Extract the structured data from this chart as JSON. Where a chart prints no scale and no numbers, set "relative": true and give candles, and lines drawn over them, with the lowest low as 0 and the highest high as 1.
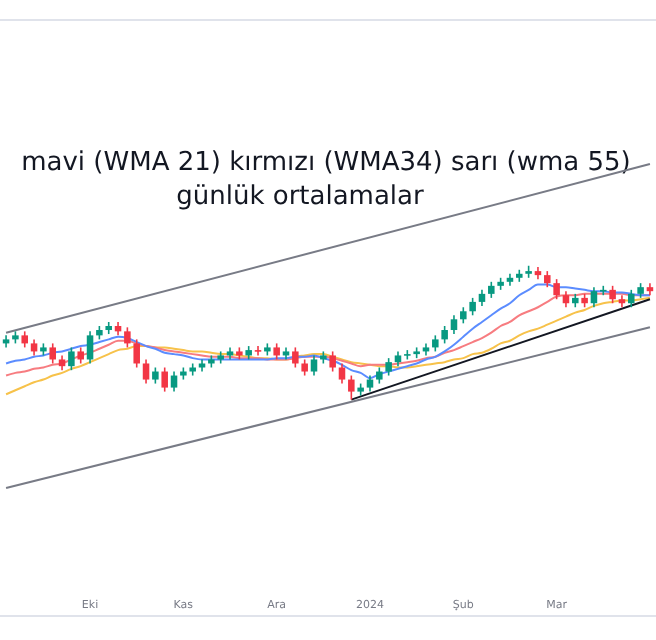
{
  "chart_data": {
    "type": "candlestick",
    "title": "mavi (WMA 21) kırmızı (WMA34) sarı (wma 55)",
    "subtitle": "günlük ortalamalar",
    "relative": true,
    "categories": [
      null,
      null,
      null,
      null,
      null,
      null,
      null,
      null,
      null,
      "Eki",
      null,
      null,
      null,
      null,
      null,
      null,
      null,
      null,
      null,
      "Kas",
      null,
      null,
      null,
      null,
      null,
      null,
      null,
      null,
      null,
      "Ara",
      null,
      null,
      null,
      null,
      null,
      null,
      null,
      null,
      null,
      "2024",
      null,
      null,
      null,
      null,
      null,
      null,
      null,
      null,
      null,
      "Şub",
      null,
      null,
      null,
      null,
      null,
      null,
      null,
      null,
      null,
      "Mar",
      null,
      null,
      null,
      null,
      null,
      null,
      null,
      null,
      null,
      null
    ],
    "ohlc": [
      [
        0.42,
        0.48,
        0.39,
        0.45
      ],
      [
        0.45,
        0.51,
        0.42,
        0.48
      ],
      [
        0.48,
        0.51,
        0.39,
        0.42
      ],
      [
        0.42,
        0.45,
        0.33,
        0.36
      ],
      [
        0.36,
        0.42,
        0.33,
        0.39
      ],
      [
        0.39,
        0.42,
        0.27,
        0.3
      ],
      [
        0.3,
        0.33,
        0.22,
        0.25
      ],
      [
        0.25,
        0.39,
        0.22,
        0.36
      ],
      [
        0.36,
        0.39,
        0.27,
        0.3
      ],
      [
        0.3,
        0.51,
        0.27,
        0.48
      ],
      [
        0.48,
        0.55,
        0.45,
        0.52
      ],
      [
        0.52,
        0.58,
        0.49,
        0.55
      ],
      [
        0.55,
        0.58,
        0.48,
        0.51
      ],
      [
        0.51,
        0.54,
        0.39,
        0.42
      ],
      [
        0.42,
        0.45,
        0.24,
        0.27
      ],
      [
        0.27,
        0.3,
        0.12,
        0.15
      ],
      [
        0.15,
        0.24,
        0.12,
        0.21
      ],
      [
        0.21,
        0.24,
        0.06,
        0.09
      ],
      [
        0.09,
        0.21,
        0.06,
        0.18
      ],
      [
        0.18,
        0.24,
        0.15,
        0.21
      ],
      [
        0.21,
        0.27,
        0.18,
        0.24
      ],
      [
        0.24,
        0.3,
        0.21,
        0.27
      ],
      [
        0.27,
        0.33,
        0.24,
        0.3
      ],
      [
        0.3,
        0.36,
        0.27,
        0.33
      ],
      [
        0.33,
        0.39,
        0.3,
        0.36
      ],
      [
        0.36,
        0.39,
        0.3,
        0.33
      ],
      [
        0.33,
        0.4,
        0.3,
        0.37
      ],
      [
        0.37,
        0.4,
        0.33,
        0.36
      ],
      [
        0.36,
        0.42,
        0.33,
        0.39
      ],
      [
        0.39,
        0.42,
        0.3,
        0.33
      ],
      [
        0.33,
        0.39,
        0.3,
        0.36
      ],
      [
        0.36,
        0.39,
        0.24,
        0.27
      ],
      [
        0.27,
        0.3,
        0.18,
        0.21
      ],
      [
        0.21,
        0.33,
        0.18,
        0.3
      ],
      [
        0.3,
        0.36,
        0.27,
        0.33
      ],
      [
        0.33,
        0.36,
        0.21,
        0.24
      ],
      [
        0.24,
        0.27,
        0.12,
        0.15
      ],
      [
        0.15,
        0.18,
        0,
        0.06
      ],
      [
        0.06,
        0.12,
        0.03,
        0.09
      ],
      [
        0.09,
        0.18,
        0.06,
        0.15
      ],
      [
        0.15,
        0.24,
        0.12,
        0.21
      ],
      [
        0.21,
        0.31,
        0.18,
        0.28
      ],
      [
        0.28,
        0.36,
        0.25,
        0.33
      ],
      [
        0.33,
        0.37,
        0.3,
        0.34
      ],
      [
        0.34,
        0.39,
        0.31,
        0.36
      ],
      [
        0.36,
        0.42,
        0.33,
        0.39
      ],
      [
        0.39,
        0.48,
        0.36,
        0.45
      ],
      [
        0.45,
        0.55,
        0.42,
        0.52
      ],
      [
        0.52,
        0.63,
        0.49,
        0.6
      ],
      [
        0.6,
        0.69,
        0.57,
        0.66
      ],
      [
        0.66,
        0.76,
        0.63,
        0.73
      ],
      [
        0.73,
        0.82,
        0.7,
        0.79
      ],
      [
        0.79,
        0.88,
        0.76,
        0.85
      ],
      [
        0.85,
        0.91,
        0.82,
        0.88
      ],
      [
        0.88,
        0.94,
        0.85,
        0.91
      ],
      [
        0.91,
        0.97,
        0.88,
        0.94
      ],
      [
        0.94,
        1,
        0.91,
        0.96
      ],
      [
        0.96,
        0.99,
        0.9,
        0.93
      ],
      [
        0.93,
        0.96,
        0.84,
        0.87
      ],
      [
        0.87,
        0.9,
        0.75,
        0.78
      ],
      [
        0.78,
        0.81,
        0.69,
        0.72
      ],
      [
        0.72,
        0.79,
        0.69,
        0.76
      ],
      [
        0.76,
        0.79,
        0.69,
        0.72
      ],
      [
        0.72,
        0.84,
        0.69,
        0.81
      ],
      [
        0.81,
        0.85,
        0.78,
        0.82
      ],
      [
        0.82,
        0.85,
        0.72,
        0.75
      ],
      [
        0.75,
        0.78,
        0.69,
        0.72
      ],
      [
        0.72,
        0.82,
        0.69,
        0.79
      ],
      [
        0.79,
        0.87,
        0.76,
        0.84
      ],
      [
        0.84,
        0.87,
        0.78,
        0.81
      ]
    ],
    "colors": [
      "#089981",
      "#089981",
      "#f23645",
      "#f23645",
      "#089981",
      "#f23645",
      "#f23645",
      "#089981",
      "#f23645",
      "#089981",
      "#089981",
      "#089981",
      "#f23645",
      "#f23645",
      "#f23645",
      "#f23645",
      "#089981",
      "#f23645",
      "#089981",
      "#089981",
      "#089981",
      "#089981",
      "#089981",
      "#089981",
      "#089981",
      "#f23645",
      "#089981",
      "#f23645",
      "#089981",
      "#f23645",
      "#089981",
      "#f23645",
      "#f23645",
      "#089981",
      "#089981",
      "#f23645",
      "#f23645",
      "#f23645",
      "#089981",
      "#089981",
      "#089981",
      "#089981",
      "#089981",
      "#089981",
      "#089981",
      "#089981",
      "#089981",
      "#089981",
      "#089981",
      "#089981",
      "#089981",
      "#089981",
      "#089981",
      "#089981",
      "#089981",
      "#089981",
      "#089981",
      "#f23645",
      "#f23645",
      "#f23645",
      "#f23645",
      "#089981",
      "#f23645",
      "#089981",
      "#089981",
      "#f23645",
      "#f23645",
      "#089981",
      "#089981",
      "#f23645"
    ],
    "series": [
      {
        "type": "line",
        "color": "#f7c24a",
        "values": [
          0.04,
          0.07,
          0.1,
          0.13,
          0.15,
          0.18,
          0.2,
          0.23,
          0.25,
          0.28,
          0.31,
          0.34,
          0.37,
          0.38,
          0.4,
          0.4,
          0.39,
          0.39,
          0.38,
          0.37,
          0.36,
          0.36,
          0.35,
          0.34,
          0.34,
          0.33,
          0.32,
          0.31,
          0.31,
          0.3,
          0.3,
          0.32,
          0.33,
          0.34,
          0.34,
          0.32,
          0.3,
          0.28,
          0.27,
          0.26,
          0.25,
          0.25,
          0.24,
          0.24,
          0.25,
          0.26,
          0.27,
          0.28,
          0.3,
          0.31,
          0.34,
          0.35,
          0.38,
          0.42,
          0.44,
          0.48,
          0.51,
          0.53,
          0.56,
          0.59,
          0.62,
          0.65,
          0.67,
          0.7,
          0.72,
          0.73,
          0.74,
          0.74,
          0.75,
          0.76
        ]
      },
      {
        "type": "line",
        "color": "#f77c80",
        "values": [
          0.18,
          0.2,
          0.21,
          0.23,
          0.24,
          0.26,
          0.27,
          0.3,
          0.33,
          0.35,
          0.38,
          0.41,
          0.44,
          0.44,
          0.42,
          0.4,
          0.39,
          0.37,
          0.36,
          0.35,
          0.34,
          0.33,
          0.32,
          0.32,
          0.32,
          0.31,
          0.31,
          0.31,
          0.3,
          0.3,
          0.3,
          0.31,
          0.32,
          0.32,
          0.32,
          0.31,
          0.29,
          0.27,
          0.25,
          0.26,
          0.26,
          0.26,
          0.27,
          0.28,
          0.29,
          0.31,
          0.32,
          0.35,
          0.37,
          0.4,
          0.43,
          0.46,
          0.5,
          0.55,
          0.58,
          0.63,
          0.66,
          0.69,
          0.73,
          0.77,
          0.78,
          0.78,
          0.79,
          0.79,
          0.79,
          0.79,
          0.79,
          0.78,
          0.78,
          0.78
        ]
      },
      {
        "type": "line",
        "color": "#5b8cff",
        "values": [
          0.27,
          0.29,
          0.3,
          0.32,
          0.33,
          0.35,
          0.36,
          0.38,
          0.4,
          0.41,
          0.43,
          0.45,
          0.47,
          0.46,
          0.43,
          0.4,
          0.38,
          0.35,
          0.34,
          0.33,
          0.31,
          0.3,
          0.3,
          0.3,
          0.3,
          0.3,
          0.3,
          0.3,
          0.3,
          0.31,
          0.31,
          0.32,
          0.32,
          0.33,
          0.31,
          0.29,
          0.26,
          0.22,
          0.2,
          0.16,
          0.19,
          0.21,
          0.23,
          0.25,
          0.27,
          0.3,
          0.32,
          0.36,
          0.41,
          0.47,
          0.53,
          0.58,
          0.63,
          0.68,
          0.72,
          0.78,
          0.82,
          0.86,
          0.86,
          0.84,
          0.84,
          0.83,
          0.82,
          0.81,
          0.81,
          0.8,
          0.8,
          0.79,
          0.78,
          0.78
        ]
      },
      {
        "type": "line",
        "color": "#787b86",
        "values": [
          0.5,
          null,
          null,
          null,
          null,
          null,
          null,
          null,
          null,
          null,
          null,
          null,
          null,
          null,
          null,
          null,
          null,
          null,
          null,
          null,
          null,
          null,
          null,
          null,
          null,
          null,
          null,
          null,
          null,
          null,
          null,
          null,
          null,
          null,
          null,
          null,
          null,
          null,
          null,
          null,
          null,
          null,
          null,
          null,
          null,
          null,
          null,
          null,
          null,
          null,
          null,
          null,
          null,
          null,
          null,
          null,
          null,
          null,
          null,
          null,
          null,
          null,
          null,
          null,
          null,
          null,
          null,
          null,
          null,
          1.76
        ]
      },
      {
        "type": "line",
        "color": "#787b86",
        "values": [
          -0.66,
          null,
          null,
          null,
          null,
          null,
          null,
          null,
          null,
          null,
          null,
          null,
          null,
          null,
          null,
          null,
          null,
          null,
          null,
          null,
          null,
          null,
          null,
          null,
          null,
          null,
          null,
          null,
          null,
          null,
          null,
          null,
          null,
          null,
          null,
          null,
          null,
          null,
          null,
          null,
          null,
          null,
          null,
          null,
          null,
          null,
          null,
          null,
          null,
          null,
          null,
          null,
          null,
          null,
          null,
          null,
          null,
          null,
          null,
          null,
          null,
          null,
          null,
          null,
          null,
          null,
          null,
          null,
          null,
          0.54
        ]
      },
      {
        "type": "line",
        "color": "#131722",
        "values": [
          null,
          null,
          null,
          null,
          null,
          null,
          null,
          null,
          null,
          null,
          null,
          null,
          null,
          null,
          null,
          null,
          null,
          null,
          null,
          null,
          null,
          null,
          null,
          null,
          null,
          null,
          null,
          null,
          null,
          null,
          null,
          null,
          null,
          null,
          null,
          null,
          null,
          0,
          null,
          null,
          null,
          null,
          null,
          null,
          null,
          null,
          null,
          null,
          null,
          null,
          null,
          null,
          null,
          null,
          null,
          null,
          null,
          null,
          null,
          null,
          null,
          null,
          null,
          null,
          null,
          null,
          null,
          null,
          null,
          0.75
        ]
      }
    ]
  }
}
